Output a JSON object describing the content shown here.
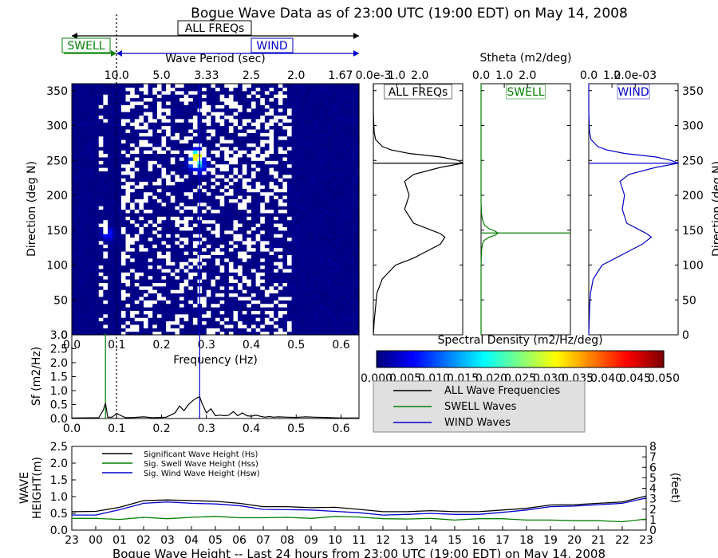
{
  "title": "Bogue Wave Data as of 23:00 UTC (19:00 EDT) on May 14, 2008",
  "chart_data": [
    {
      "id": "directional-spectrum",
      "type": "heatmap",
      "title": "",
      "xlabel": "Frequency (Hz)",
      "ylabel": "Direction (deg N)",
      "top_axis_label": "Wave Period (sec)",
      "top_ticks": [
        "10.0",
        "5.0",
        "3.33",
        "2.5",
        "2.0",
        "1.67"
      ],
      "xlim": [
        0.0,
        0.64
      ],
      "ylim": [
        0,
        360
      ],
      "xticks": [
        "0.0",
        "0.1",
        "0.2",
        "0.3",
        "0.4",
        "0.5",
        "0.6"
      ],
      "yticks": [
        "0",
        "50",
        "100",
        "150",
        "200",
        "250",
        "300",
        "350"
      ],
      "swell_wind_separation_hz": 0.1,
      "range_markers": [
        {
          "label": "ALL FREQs",
          "color": "#000000"
        },
        {
          "label": "SWELL",
          "color": "#007f00"
        },
        {
          "label": "WIND",
          "color": "#0000cc"
        }
      ],
      "colorbar": {
        "label": "Spectral Density (m2/Hz/deg)",
        "min": 0.0,
        "max": 0.05,
        "ticks": [
          "0.000",
          "0.005",
          "0.010",
          "0.015",
          "0.020",
          "0.025",
          "0.030",
          "0.035",
          "0.040",
          "0.045",
          "0.050"
        ]
      },
      "hotspots": [
        {
          "freq": 0.28,
          "dir": 258,
          "value": 0.028
        },
        {
          "freq": 0.28,
          "dir": 250,
          "value": 0.016
        },
        {
          "freq": 0.27,
          "dir": 245,
          "value": 0.01
        },
        {
          "freq": 0.29,
          "dir": 240,
          "value": 0.008
        },
        {
          "freq": 0.08,
          "dir": 145,
          "value": 0.008
        }
      ]
    },
    {
      "id": "frequency-spectrum",
      "type": "line",
      "xlabel": "Frequency (Hz)",
      "ylabel": "Sf (m2/Hz)",
      "xlim": [
        0.0,
        0.64
      ],
      "ylim": [
        0,
        3.0
      ],
      "xticks": [
        "0.0",
        "0.1",
        "0.2",
        "0.3",
        "0.4",
        "0.5",
        "0.6"
      ],
      "yticks": [
        "0.0",
        "0.5",
        "1.0",
        "1.5",
        "2.0",
        "2.5",
        "3.0"
      ],
      "swell_peak_hz": 0.075,
      "wind_peak_hz": 0.285,
      "swell_wind_separation_hz": 0.1,
      "series": [
        {
          "name": "ALL Wave Frequencies",
          "color": "#000000",
          "x": [
            0.0,
            0.06,
            0.07,
            0.075,
            0.08,
            0.09,
            0.1,
            0.11,
            0.12,
            0.14,
            0.16,
            0.18,
            0.2,
            0.21,
            0.22,
            0.23,
            0.24,
            0.25,
            0.26,
            0.27,
            0.28,
            0.285,
            0.29,
            0.3,
            0.31,
            0.32,
            0.33,
            0.34,
            0.35,
            0.36,
            0.37,
            0.38,
            0.39,
            0.4,
            0.41,
            0.42,
            0.43,
            0.44,
            0.45,
            0.46,
            0.48,
            0.5,
            0.52,
            0.54,
            0.56,
            0.58,
            0.6,
            0.62,
            0.64
          ],
          "y": [
            0.02,
            0.03,
            0.3,
            0.55,
            0.05,
            0.05,
            0.18,
            0.1,
            0.03,
            0.04,
            0.06,
            0.03,
            0.04,
            0.05,
            0.12,
            0.2,
            0.45,
            0.28,
            0.5,
            0.65,
            0.75,
            0.78,
            0.55,
            0.2,
            0.35,
            0.1,
            0.12,
            0.1,
            0.12,
            0.25,
            0.1,
            0.2,
            0.1,
            0.08,
            0.12,
            0.08,
            0.05,
            0.07,
            0.05,
            0.06,
            0.05,
            0.04,
            0.06,
            0.05,
            0.04,
            0.03,
            0.02,
            0.02,
            0.02
          ]
        }
      ]
    },
    {
      "id": "stheta-all",
      "type": "line",
      "title": "ALL FREQs",
      "xlabel": "",
      "ylabel": "",
      "top_axis_label": "Stheta (m2/deg)",
      "xlim": [
        0,
        2.0
      ],
      "xticks": [
        "0.0e-3",
        "1.0",
        "2.0"
      ],
      "ylim": [
        0,
        360
      ],
      "peak_direction": 246,
      "series": [
        {
          "name": "ALL FREQs",
          "color": "#000000",
          "dir": [
            0,
            20,
            40,
            60,
            80,
            100,
            110,
            120,
            130,
            140,
            145,
            150,
            160,
            180,
            200,
            220,
            230,
            240,
            246,
            250,
            255,
            260,
            265,
            270,
            280,
            290,
            300,
            320,
            340,
            360
          ],
          "value": [
            0.0,
            0.02,
            0.05,
            0.08,
            0.2,
            0.5,
            0.9,
            1.2,
            1.5,
            1.6,
            1.5,
            1.3,
            0.9,
            0.7,
            0.8,
            0.7,
            0.9,
            1.5,
            2.0,
            1.9,
            1.5,
            0.8,
            0.4,
            0.2,
            0.05,
            0.02,
            0.01,
            0.0,
            0.0,
            0.0
          ]
        }
      ]
    },
    {
      "id": "stheta-swell",
      "type": "line",
      "title": "SWELL",
      "xlim": [
        0,
        2.0
      ],
      "xticks": [
        "0.0",
        "1.0",
        "2.0"
      ],
      "ylim": [
        0,
        360
      ],
      "peak_direction": 146,
      "series": [
        {
          "name": "SWELL",
          "color": "#007f00",
          "dir": [
            0,
            100,
            120,
            130,
            135,
            140,
            143,
            146,
            149,
            152,
            157,
            165,
            175,
            190,
            220,
            360
          ],
          "value": [
            0.0,
            0.0,
            0.01,
            0.03,
            0.06,
            0.18,
            0.32,
            0.38,
            0.3,
            0.18,
            0.08,
            0.03,
            0.01,
            0.0,
            0.0,
            0.0
          ]
        }
      ]
    },
    {
      "id": "stheta-wind",
      "type": "line",
      "title": "WIND",
      "xlim": [
        0,
        2.0
      ],
      "xticks": [
        "0.0",
        "1.0",
        "2.0e-03"
      ],
      "ylim": [
        0,
        360
      ],
      "y_right_ticks": [
        "0",
        "50",
        "100",
        "150",
        "200",
        "250",
        "300",
        "350"
      ],
      "y_right_label": "Direction (deg N)",
      "peak_direction": 246,
      "series": [
        {
          "name": "WIND",
          "color": "#0000cc",
          "dir": [
            0,
            20,
            40,
            60,
            80,
            100,
            110,
            120,
            130,
            140,
            145,
            150,
            160,
            180,
            200,
            220,
            230,
            240,
            246,
            250,
            255,
            260,
            265,
            270,
            280,
            290,
            300,
            320,
            340,
            360
          ],
          "value": [
            0.0,
            0.01,
            0.02,
            0.04,
            0.1,
            0.3,
            0.6,
            0.9,
            1.2,
            1.4,
            1.3,
            1.15,
            0.85,
            0.75,
            0.8,
            0.7,
            0.9,
            1.5,
            2.0,
            1.85,
            1.5,
            0.8,
            0.4,
            0.2,
            0.05,
            0.02,
            0.01,
            0.0,
            0.0,
            0.0
          ]
        }
      ]
    },
    {
      "id": "wave-height-history",
      "type": "line",
      "title": "Bogue Wave Height -- Last 24 hours from 23:00 UTC (19:00 EDT) on May 14, 2008",
      "ylabel": "WAVE HEIGHT(m)",
      "y_right_label": "(feet)",
      "ylim": [
        0,
        2.5
      ],
      "yticks": [
        "0.0",
        "0.5",
        "1.0",
        "1.5",
        "2.0",
        "2.5"
      ],
      "y_right_ticks": [
        "0",
        "1",
        "2",
        "3",
        "4",
        "5",
        "6",
        "7",
        "8"
      ],
      "categories": [
        "23",
        "00",
        "01",
        "02",
        "03",
        "04",
        "05",
        "06",
        "07",
        "08",
        "09",
        "10",
        "11",
        "12",
        "13",
        "14",
        "15",
        "16",
        "17",
        "18",
        "19",
        "20",
        "21",
        "22",
        "23"
      ],
      "series": [
        {
          "name": "Significant Wave Height (Hs)",
          "color": "#000000",
          "values": [
            0.55,
            0.56,
            0.68,
            0.88,
            0.9,
            0.88,
            0.86,
            0.8,
            0.7,
            0.7,
            0.67,
            0.68,
            0.62,
            0.55,
            0.55,
            0.58,
            0.55,
            0.55,
            0.6,
            0.65,
            0.75,
            0.76,
            0.8,
            0.84,
            1.02
          ]
        },
        {
          "name": "Sig. Swell Wave Height (Hss)",
          "color": "#007f00",
          "values": [
            0.35,
            0.35,
            0.32,
            0.38,
            0.34,
            0.38,
            0.41,
            0.37,
            0.37,
            0.38,
            0.35,
            0.41,
            0.39,
            0.34,
            0.33,
            0.35,
            0.3,
            0.34,
            0.34,
            0.3,
            0.3,
            0.28,
            0.28,
            0.25,
            0.33
          ]
        },
        {
          "name": "Sig. Wind Wave Height (Hsw)",
          "color": "#0000cc",
          "values": [
            0.45,
            0.45,
            0.61,
            0.8,
            0.84,
            0.8,
            0.78,
            0.73,
            0.62,
            0.61,
            0.6,
            0.56,
            0.52,
            0.45,
            0.47,
            0.5,
            0.47,
            0.47,
            0.53,
            0.6,
            0.7,
            0.72,
            0.76,
            0.8,
            0.96
          ]
        }
      ]
    }
  ],
  "legend_mid": [
    {
      "label": "ALL Wave Frequencies",
      "color": "#000000"
    },
    {
      "label": "SWELL Waves",
      "color": "#007f00"
    },
    {
      "label": "WIND Waves",
      "color": "#0000cc"
    }
  ]
}
